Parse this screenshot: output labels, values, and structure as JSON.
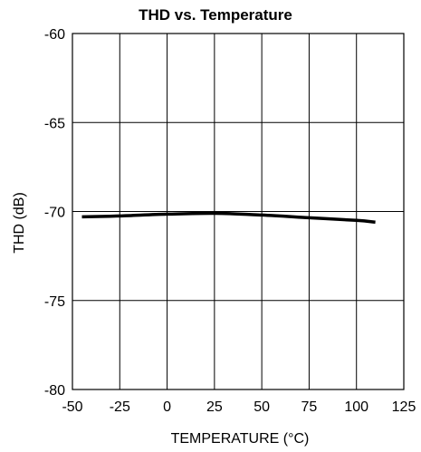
{
  "chart_data": {
    "type": "line",
    "title": "THD vs. Temperature",
    "xlabel": "TEMPERATURE (°C)",
    "ylabel": "THD (dB)",
    "xlim": [
      -50,
      125
    ],
    "ylim": [
      -80,
      -60
    ],
    "xticks": [
      -50,
      -25,
      0,
      25,
      50,
      75,
      100,
      125
    ],
    "yticks": [
      -60,
      -65,
      -70,
      -75,
      -80
    ],
    "grid": true,
    "legend": "none",
    "series": [
      {
        "color": "#000000",
        "x": [
          -45,
          -25,
          0,
          25,
          50,
          75,
          100,
          110
        ],
        "y": [
          -70.3,
          -70.25,
          -70.15,
          -70.1,
          -70.2,
          -70.35,
          -70.5,
          -70.6
        ]
      }
    ]
  }
}
